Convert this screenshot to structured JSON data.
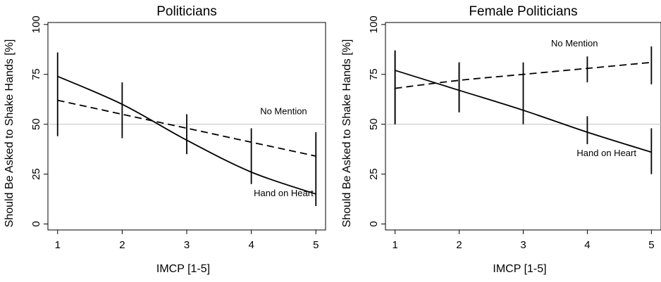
{
  "chart_data": [
    {
      "type": "line",
      "title": "Politicians",
      "xlabel": "IMCP [1-5]",
      "ylabel": "Should Be Asked to Shake Hands [%]",
      "x": [
        1,
        2,
        3,
        4,
        5
      ],
      "xlim": [
        0.85,
        5.15
      ],
      "ylim": [
        -3,
        101
      ],
      "yticks": [
        0,
        25,
        50,
        75,
        100
      ],
      "reference_line": 50,
      "series": [
        {
          "name": "Hand on Heart",
          "line_style": "solid",
          "values": [
            74,
            60,
            42,
            26,
            15
          ],
          "ci_low": [
            44,
            43,
            35,
            20,
            9
          ],
          "ci_high": [
            86,
            71,
            55,
            48,
            46
          ]
        },
        {
          "name": "No Mention",
          "line_style": "dashed",
          "values": [
            62,
            55,
            48,
            41,
            34
          ],
          "ci_low": [],
          "ci_high": []
        }
      ],
      "annotations": [
        {
          "text": "No Mention",
          "x": 4.5,
          "y": 55
        },
        {
          "text": "Hand on Heart",
          "x": 4.5,
          "y": 14
        }
      ]
    },
    {
      "type": "line",
      "title": "Female Politicians",
      "xlabel": "IMCP [1-5]",
      "ylabel": "Should Be Asked to Shake Hands [%]",
      "x": [
        1,
        2,
        3,
        4,
        5
      ],
      "xlim": [
        0.85,
        5.15
      ],
      "ylim": [
        -3,
        101
      ],
      "yticks": [
        0,
        25,
        50,
        75,
        100
      ],
      "reference_line": 50,
      "series": [
        {
          "name": "No Mention",
          "line_style": "dashed",
          "values": [
            68,
            72,
            75,
            78,
            81
          ],
          "ci_low": [],
          "ci_high": [],
          "ci_low_visible": [
            50,
            56,
            64,
            71,
            70
          ],
          "ci_high_visible": [
            87,
            81,
            81,
            84,
            89
          ]
        },
        {
          "name": "Hand on Heart",
          "line_style": "solid",
          "values": [
            77,
            67,
            57,
            46,
            36
          ],
          "ci_low": [
            50,
            56,
            50,
            40,
            25
          ],
          "ci_high": [
            87,
            81,
            64,
            54,
            48
          ]
        }
      ],
      "annotations": [
        {
          "text": "No Mention",
          "x": 3.8,
          "y": 89
        },
        {
          "text": "Hand on Heart",
          "x": 4.3,
          "y": 34
        }
      ]
    }
  ]
}
